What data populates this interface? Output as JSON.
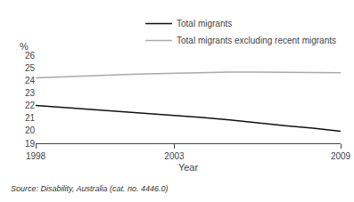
{
  "chart_data": {
    "type": "line",
    "xlabel": "Year",
    "ylabel": "%",
    "annotations": [
      "Source: Disability, Australia (cat. no. 4446.0)"
    ],
    "x": [
      1998,
      1999,
      2000,
      2001,
      2002,
      2003,
      2004,
      2005,
      2006,
      2007,
      2008,
      2009
    ],
    "series": [
      {
        "name": "Total migrants",
        "color": "#111111",
        "values": [
          22.0,
          21.85,
          21.65,
          21.5,
          21.35,
          21.2,
          21.05,
          20.85,
          20.6,
          20.4,
          20.2,
          19.95
        ]
      },
      {
        "name": "Total migrants excluding recent migrants",
        "color": "#aaaaaa",
        "values": [
          24.2,
          24.3,
          24.38,
          24.45,
          24.52,
          24.58,
          24.62,
          24.65,
          24.65,
          24.63,
          24.62,
          24.6
        ]
      }
    ],
    "xlim": [
      1998,
      2009
    ],
    "ylim": [
      19,
      26
    ],
    "xticks": [
      1998,
      2003,
      2009
    ],
    "yticks": [
      19,
      20,
      21,
      22,
      23,
      24,
      25,
      26
    ],
    "grid": false,
    "legend": "upper right"
  }
}
